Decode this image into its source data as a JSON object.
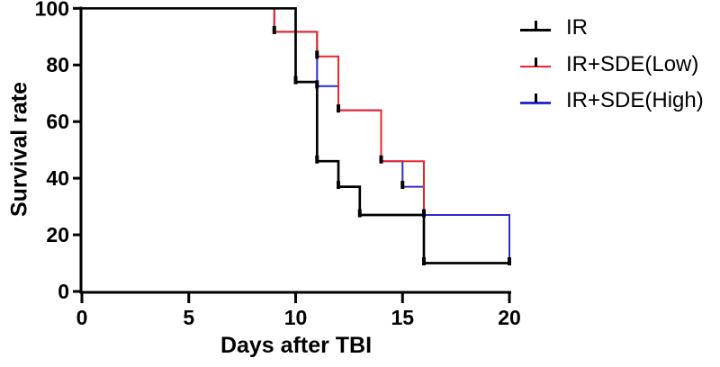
{
  "axes": {
    "x_title": "Days after TBI",
    "y_title": "Survival rate",
    "x_tick_labels": [
      "0",
      "5",
      "10",
      "15",
      "20"
    ],
    "y_tick_labels": [
      "0",
      "20",
      "40",
      "60",
      "80",
      "100"
    ]
  },
  "legend": {
    "items": [
      {
        "label": "IR",
        "color": "#000000"
      },
      {
        "label": "IR+SDE(Low)",
        "color": "#e8262b"
      },
      {
        "label": "IR+SDE(High)",
        "color": "#2d2dc9"
      }
    ]
  },
  "chart_data": {
    "type": "line",
    "subtype": "kaplan-meier-step",
    "title": "",
    "xlabel": "Days after TBI",
    "ylabel": "Survival rate",
    "xlim": [
      0,
      20
    ],
    "ylim": [
      0,
      100
    ],
    "xticks": [
      0,
      5,
      10,
      15,
      20
    ],
    "yticks": [
      0,
      20,
      40,
      60,
      80,
      100
    ],
    "grid": false,
    "legend_position": "top-right",
    "marker_color": "#000000",
    "axis_color": "#000000",
    "series": [
      {
        "name": "IR",
        "key": "ir",
        "color": "#000000",
        "line_width": 2.7,
        "points": [
          [
            0,
            100
          ],
          [
            10,
            100
          ],
          [
            10,
            74
          ],
          [
            11,
            74
          ],
          [
            11,
            46
          ],
          [
            12,
            46
          ],
          [
            12,
            37
          ],
          [
            13,
            37
          ],
          [
            13,
            27
          ],
          [
            16,
            27
          ],
          [
            16,
            10
          ],
          [
            20,
            10
          ]
        ],
        "markers": [
          [
            10,
            74
          ],
          [
            11,
            46
          ],
          [
            12,
            37
          ],
          [
            13,
            27
          ],
          [
            16,
            10
          ],
          [
            20,
            10
          ]
        ]
      },
      {
        "name": "IR+SDE(Low)",
        "key": "ir-sde-low",
        "color": "#e8262b",
        "line_width": 2,
        "points": [
          [
            0,
            100
          ],
          [
            9,
            100
          ],
          [
            9,
            91.7
          ],
          [
            11,
            91.7
          ],
          [
            11,
            83
          ],
          [
            12,
            83
          ],
          [
            12,
            64
          ],
          [
            14,
            64
          ],
          [
            14,
            46
          ],
          [
            16,
            46
          ],
          [
            16,
            27
          ]
        ],
        "markers": [
          [
            9,
            91.7
          ],
          [
            11,
            83
          ],
          [
            12,
            64
          ],
          [
            14,
            46
          ],
          [
            16,
            27
          ]
        ]
      },
      {
        "name": "IR+SDE(High)",
        "key": "ir-sde-high",
        "color": "#2d2dc9",
        "line_width": 2,
        "points": [
          [
            0,
            100
          ],
          [
            9,
            100
          ],
          [
            9,
            91.7
          ],
          [
            11,
            91.7
          ],
          [
            11,
            72.5
          ],
          [
            12,
            72.5
          ],
          [
            12,
            64
          ],
          [
            14,
            64
          ],
          [
            14,
            46
          ],
          [
            15,
            46
          ],
          [
            15,
            37
          ],
          [
            16,
            37
          ],
          [
            16,
            27
          ],
          [
            20,
            27
          ],
          [
            20,
            10
          ]
        ],
        "markers": [
          [
            11,
            72.5
          ],
          [
            15,
            37
          ]
        ]
      }
    ]
  }
}
